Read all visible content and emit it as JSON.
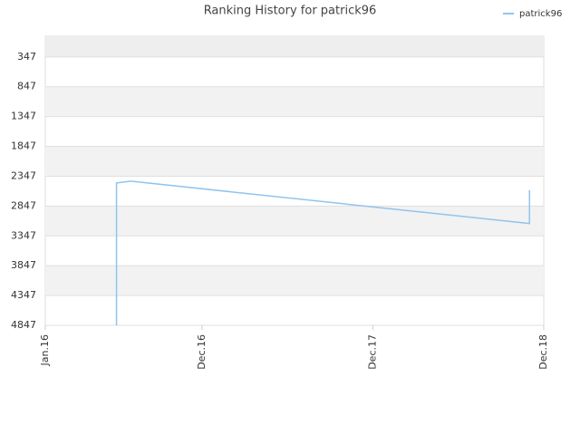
{
  "chart_data": {
    "type": "line",
    "title": "Ranking History for patrick96",
    "x": [
      "2016-06",
      "2016-06",
      "2016-06",
      "2016-07",
      "2018-11",
      "2018-11"
    ],
    "series": [
      {
        "name": "patrick96",
        "color": "#90c4ee",
        "values": [
          4847,
          4250,
          2460,
          2430,
          3140,
          2580
        ]
      }
    ],
    "xlim": [
      "2016-01",
      "2018-12"
    ],
    "xticks": [
      {
        "value": "2016-01",
        "label": "Jan.16"
      },
      {
        "value": "2016-12",
        "label": "Dec.16"
      },
      {
        "value": "2017-12",
        "label": "Dec.17"
      },
      {
        "value": "2018-12",
        "label": "Dec.18"
      }
    ],
    "ylim": [
      4847,
      0
    ],
    "yticks": [
      347,
      847,
      1347,
      1847,
      2347,
      2847,
      3347,
      3847,
      4347,
      4847
    ],
    "grid": true,
    "legend": "top-right"
  }
}
